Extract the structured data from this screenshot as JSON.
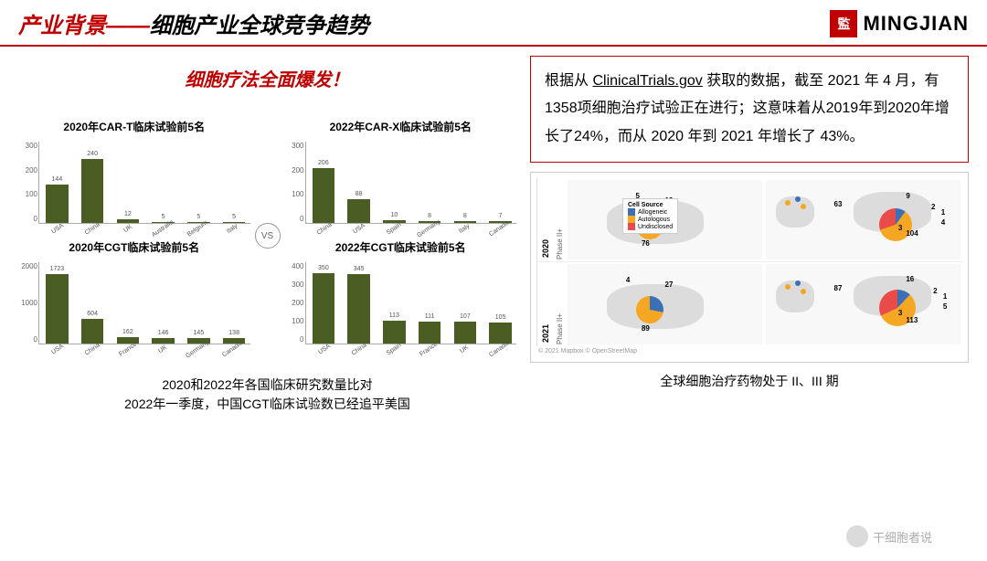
{
  "header": {
    "title_red": "产业背景——",
    "title_black": "细胞产业全球竞争趋势",
    "logo_text": "MINGJIAN",
    "logo_icon": "監"
  },
  "subtitle": "细胞疗法全面爆发！",
  "vs_label": "VS",
  "charts": {
    "bar_color": "#4a5d23",
    "c1": {
      "title": "2020年CAR-T临床试验前5名",
      "categories": [
        "USA",
        "China",
        "UK",
        "Australia",
        "Belgium",
        "Italy"
      ],
      "values": [
        144,
        240,
        12,
        5,
        5,
        5
      ],
      "ymax": 300,
      "yticks": [
        300,
        200,
        100,
        0
      ]
    },
    "c2": {
      "title": "2022年CAR-X临床试验前5名",
      "categories": [
        "China",
        "USA",
        "Spain",
        "Germany",
        "Italy",
        "Canada"
      ],
      "values": [
        206,
        88,
        10,
        8,
        8,
        7
      ],
      "ymax": 300,
      "yticks": [
        300,
        200,
        100,
        0
      ]
    },
    "c3": {
      "title": "2020年CGT临床试验前5名",
      "categories": [
        "USA",
        "China",
        "France",
        "UK",
        "Germany",
        "Canada"
      ],
      "values": [
        1723,
        604,
        162,
        146,
        145,
        138
      ],
      "ymax": 2000,
      "yticks": [
        2000,
        1000,
        0
      ]
    },
    "c4": {
      "title": "2022年CGT临床试验前5名",
      "categories": [
        "USA",
        "China",
        "Spain",
        "France",
        "UK",
        "Canada"
      ],
      "values": [
        350,
        345,
        113,
        111,
        107,
        105
      ],
      "ymax": 400,
      "yticks": [
        400,
        300,
        200,
        100,
        0
      ]
    }
  },
  "caption_left_l1": "2020和2022年各国临床研究数量比对",
  "caption_left_l2": "2022年一季度，中国CGT临床试验数已经追平美国",
  "data_box": {
    "prefix": "根据从 ",
    "link": "ClinicalTrials.gov",
    "suffix": " 获取的数据，截至 2021 年 4 月，有1358项细胞治疗试验正在进行；这意味着从2019年到2020年增长了24%，而从 2020 年到 2021 年增长了 43%。"
  },
  "maps": {
    "year1": "2020",
    "year2": "2021",
    "phase": "Phase II+",
    "legend_title": "Cell Source",
    "legend": [
      {
        "label": "Allogeneic",
        "color": "#3b6fb6"
      },
      {
        "label": "Autologous",
        "color": "#f5a623"
      },
      {
        "label": "Undisclosed",
        "color": "#e94b4b"
      }
    ],
    "credit": "© 2021 Mapbox © OpenStreetMap",
    "row1_nums": {
      "na": "76",
      "na_top": "19",
      "na_top2": "5",
      "eu1": "63",
      "asia": "104",
      "asia_t": "9",
      "asia_r1": "2",
      "asia_r2": "1",
      "asia_b": "3",
      "asia_r3": "4"
    },
    "row2_nums": {
      "na": "89",
      "na_top": "27",
      "na_top2": "4",
      "eu1": "87",
      "asia": "113",
      "asia_t": "16",
      "asia_r1": "2",
      "asia_r2": "1",
      "asia_b": "3",
      "asia_r3": "5"
    }
  },
  "caption_right": "全球细胞治疗药物处于 II、III 期",
  "watermark": "干细胞者说"
}
